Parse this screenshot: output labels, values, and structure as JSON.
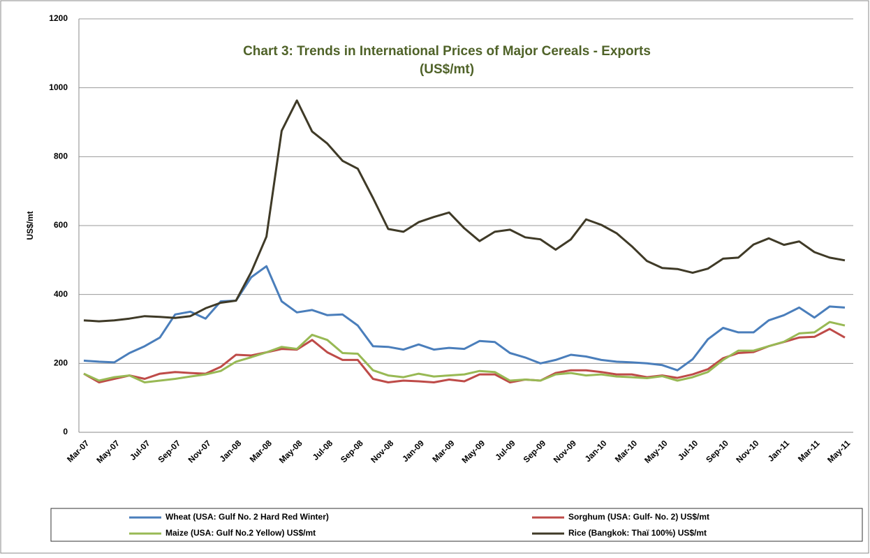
{
  "chart_data": {
    "type": "line",
    "title": "Chart 3: Trends in International Prices of Major Cereals - Exports",
    "subtitle": "(US$/mt)",
    "y_label": "US$/mt",
    "categories": [
      "Mar-07",
      null,
      "May-07",
      null,
      "Jul-07",
      null,
      "Sep-07",
      null,
      "Nov-07",
      null,
      "Jan-08",
      null,
      "Mar-08",
      null,
      "May-08",
      null,
      "Jul-08",
      null,
      "Sep-08",
      null,
      "Nov-08",
      null,
      "Jan-09",
      null,
      "Mar-09",
      null,
      "May-09",
      null,
      "Jul-09",
      null,
      "Sep-09",
      null,
      "Nov-09",
      null,
      "Jan-10",
      null,
      "Mar-10",
      null,
      "May-10",
      null,
      "Jul-10",
      null,
      "Sep-10",
      null,
      "Nov-10",
      null,
      "Jan-11",
      null,
      "Mar-11",
      null,
      "May-11"
    ],
    "series": [
      {
        "name": "Wheat (USA: Gulf No. 2 Hard Red Winter)",
        "color": "#4a7ebb",
        "values": [
          208,
          205,
          203,
          230,
          250,
          275,
          342,
          350,
          330,
          380,
          382,
          450,
          482,
          380,
          348,
          355,
          340,
          342,
          310,
          250,
          248,
          240,
          255,
          240,
          245,
          242,
          265,
          262,
          230,
          217,
          200,
          210,
          225,
          220,
          210,
          205,
          203,
          200,
          195,
          180,
          212,
          270,
          303,
          290,
          290,
          325,
          340,
          362,
          333,
          365,
          362
        ]
      },
      {
        "name": "Sorghum (USA: Gulf- No. 2) US$/mt",
        "color": "#be4b48",
        "values": [
          170,
          145,
          155,
          165,
          155,
          170,
          175,
          172,
          170,
          190,
          225,
          223,
          232,
          242,
          240,
          268,
          232,
          210,
          210,
          155,
          145,
          150,
          148,
          145,
          153,
          148,
          168,
          168,
          145,
          153,
          150,
          172,
          180,
          180,
          175,
          168,
          168,
          160,
          165,
          158,
          168,
          183,
          215,
          230,
          233,
          250,
          262,
          275,
          277,
          300,
          275
        ]
      },
      {
        "name": "Maize (USA: Gulf No.2 Yellow) US$/mt",
        "color": "#98b954",
        "values": [
          170,
          150,
          160,
          165,
          145,
          150,
          155,
          162,
          168,
          178,
          205,
          218,
          232,
          248,
          242,
          283,
          268,
          230,
          228,
          180,
          165,
          160,
          170,
          162,
          165,
          168,
          178,
          175,
          150,
          153,
          150,
          168,
          172,
          165,
          168,
          162,
          160,
          157,
          163,
          150,
          160,
          175,
          210,
          237,
          237,
          250,
          263,
          287,
          290,
          320,
          310
        ]
      },
      {
        "name": "Rice (Bangkok: Thaï 100%) US$/mt",
        "color": "#3f3a27",
        "values": [
          325,
          322,
          325,
          330,
          337,
          335,
          332,
          337,
          360,
          376,
          382,
          465,
          568,
          875,
          963,
          873,
          838,
          788,
          765,
          680,
          590,
          582,
          610,
          625,
          638,
          592,
          555,
          582,
          588,
          566,
          560,
          530,
          560,
          618,
          602,
          578,
          540,
          497,
          477,
          474,
          463,
          475,
          504,
          507,
          545,
          563,
          544,
          554,
          523,
          507,
          499
        ]
      }
    ],
    "ylim": [
      0,
      1200
    ],
    "yticks": [
      0,
      200,
      400,
      600,
      800,
      1000,
      1200
    ],
    "grid": true
  }
}
